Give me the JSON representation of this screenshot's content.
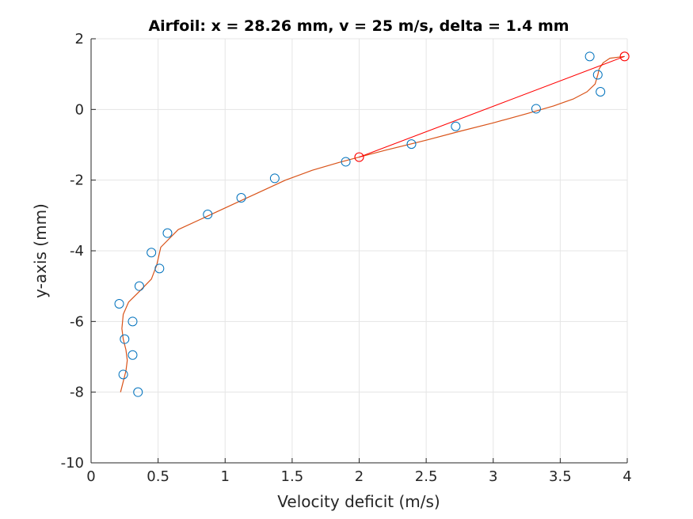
{
  "chart_data": {
    "type": "scatter",
    "title": "Airfoil: x = 28.26 mm, v = 25 m/s, delta = 1.4 mm",
    "xlabel": "Velocity deficit (m/s)",
    "ylabel": "y-axis (mm)",
    "xlim": [
      0,
      4
    ],
    "ylim": [
      -10,
      2
    ],
    "xticks": [
      "0",
      "0.5",
      "1",
      "1.5",
      "2",
      "2.5",
      "3",
      "3.5",
      "4"
    ],
    "yticks": [
      "2",
      "0",
      "-2",
      "-4",
      "-6",
      "-8",
      "-10"
    ],
    "grid": true,
    "legend": "none",
    "colors": {
      "measured": "#0072BD",
      "fit": "#D95319",
      "markers": "#FF0000",
      "grid": "#E5E5E5",
      "axis": "#262626"
    },
    "series": [
      {
        "kind": "scatter-open-circles",
        "x": [
          0.35,
          0.24,
          0.31,
          0.25,
          0.31,
          0.21,
          0.36,
          0.51,
          0.45,
          0.57,
          0.87,
          1.12,
          1.37,
          1.9,
          2.39,
          2.72,
          3.32,
          3.8,
          3.78,
          3.72
        ],
        "y": [
          -8.0,
          -7.5,
          -6.95,
          -6.5,
          -6.0,
          -5.5,
          -5.0,
          -4.5,
          -4.05,
          -3.5,
          -2.97,
          -2.5,
          -1.95,
          -1.48,
          -0.98,
          -0.48,
          0.02,
          0.5,
          0.98,
          1.5
        ]
      },
      {
        "kind": "smooth-fit-line",
        "x": [
          0.22,
          0.24,
          0.26,
          0.27,
          0.26,
          0.24,
          0.23,
          0.24,
          0.28,
          0.36,
          0.45,
          0.49,
          0.52,
          0.65,
          0.85,
          1.05,
          1.25,
          1.45,
          1.65,
          1.85,
          2.0,
          2.2,
          2.5,
          2.75,
          3.0,
          3.25,
          3.45,
          3.6,
          3.7,
          3.76,
          3.78,
          3.79,
          3.82,
          3.87,
          3.98
        ],
        "y": [
          -8.0,
          -7.7,
          -7.4,
          -7.1,
          -6.8,
          -6.5,
          -6.2,
          -5.8,
          -5.45,
          -5.15,
          -4.8,
          -4.4,
          -3.9,
          -3.4,
          -3.05,
          -2.7,
          -2.35,
          -2.0,
          -1.72,
          -1.5,
          -1.35,
          -1.15,
          -0.87,
          -0.62,
          -0.38,
          -0.12,
          0.1,
          0.3,
          0.5,
          0.72,
          0.98,
          1.15,
          1.32,
          1.45,
          1.5
        ]
      },
      {
        "kind": "straight-line",
        "x": [
          2.0,
          3.98
        ],
        "y": [
          -1.35,
          1.5
        ]
      },
      {
        "kind": "highlighted-points",
        "x": [
          2.0,
          3.98
        ],
        "y": [
          -1.35,
          1.5
        ]
      }
    ]
  }
}
